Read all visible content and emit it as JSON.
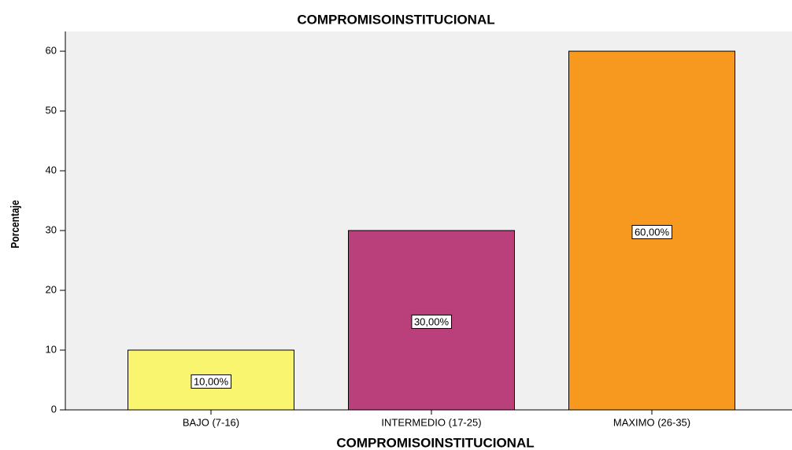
{
  "chart_data": {
    "type": "bar",
    "title": "COMPROMISOINSTITUCIONAL",
    "x_label": "COMPROMISOINSTITUCIONAL",
    "y_label": "Porcentaje",
    "categories": [
      "BAJO (7-16)",
      "INTERMEDIO (17-25)",
      "MAXIMO (26-35)"
    ],
    "values": [
      10,
      30,
      60
    ],
    "value_labels": [
      "10,00%",
      "30,00%",
      "60,00%"
    ],
    "colors": [
      "#faf56f",
      "#b9407b",
      "#f7991f"
    ],
    "ylim": [
      0,
      63.3
    ],
    "yticks": [
      0,
      10,
      20,
      30,
      40,
      50,
      60
    ],
    "grid": false
  }
}
